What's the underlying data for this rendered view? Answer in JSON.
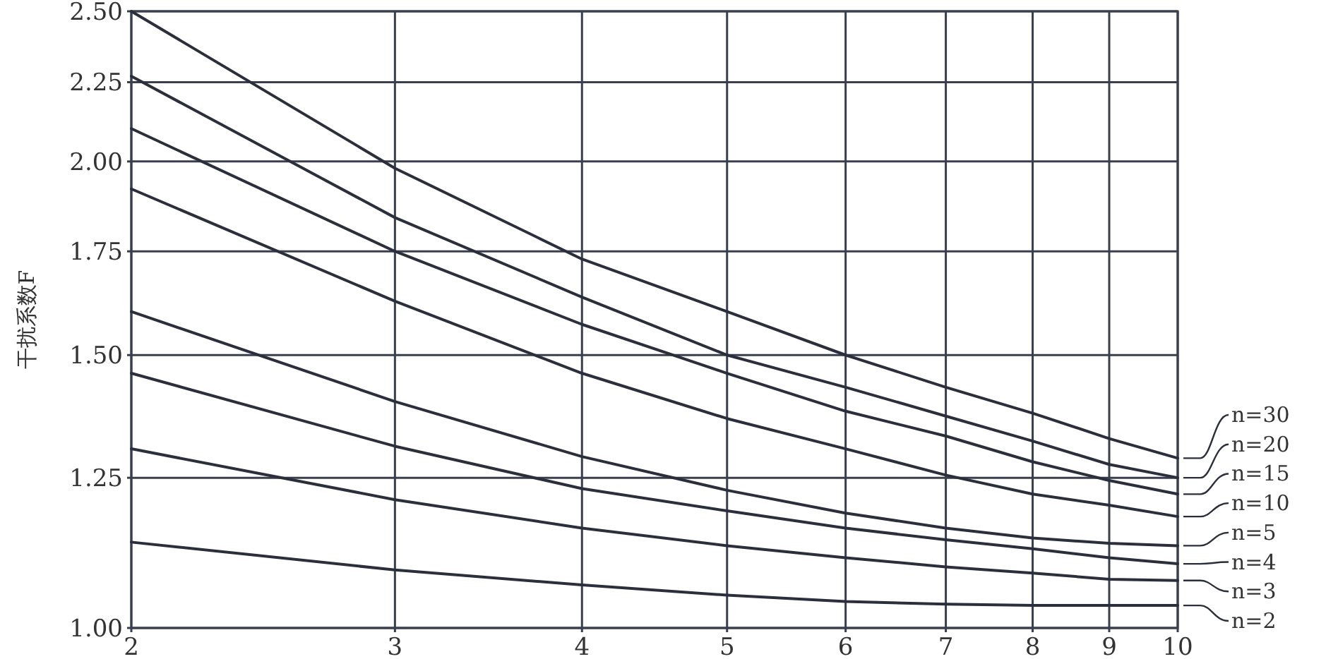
{
  "chart_data": {
    "type": "line",
    "ylabel": "干扰系数F",
    "x": [
      2,
      3,
      4,
      5,
      6,
      7,
      8,
      9,
      10
    ],
    "series": [
      {
        "name": "n=30",
        "color": "#2b2f3b",
        "values": [
          2.5,
          1.98,
          1.73,
          1.6,
          1.5,
          1.43,
          1.376,
          1.325,
          1.287
        ]
      },
      {
        "name": "n=20",
        "color": "#2b2f3b",
        "values": [
          2.27,
          1.84,
          1.635,
          1.5,
          1.43,
          1.37,
          1.32,
          1.275,
          1.25
        ]
      },
      {
        "name": "n=15",
        "color": "#2b2f3b",
        "values": [
          2.1,
          1.75,
          1.57,
          1.46,
          1.38,
          1.33,
          1.28,
          1.245,
          1.22
        ]
      },
      {
        "name": "n=10",
        "color": "#2b2f3b",
        "values": [
          1.92,
          1.625,
          1.46,
          1.365,
          1.305,
          1.255,
          1.22,
          1.2,
          1.18
        ]
      },
      {
        "name": "n=5",
        "color": "#2b2f3b",
        "values": [
          1.6,
          1.4,
          1.29,
          1.227,
          1.186,
          1.16,
          1.143,
          1.134,
          1.13
        ]
      },
      {
        "name": "n=4",
        "color": "#2b2f3b",
        "values": [
          1.46,
          1.31,
          1.23,
          1.19,
          1.16,
          1.14,
          1.125,
          1.11,
          1.1
        ]
      },
      {
        "name": "n=3",
        "color": "#2b2f3b",
        "values": [
          1.305,
          1.21,
          1.16,
          1.13,
          1.11,
          1.095,
          1.085,
          1.075,
          1.073
        ]
      },
      {
        "name": "n=2",
        "color": "#2b2f3b",
        "values": [
          1.136,
          1.09,
          1.066,
          1.05,
          1.04,
          1.036,
          1.034,
          1.034,
          1.034
        ]
      }
    ],
    "xlim": [
      2,
      10
    ],
    "xticks": [
      2,
      3,
      4,
      5,
      6,
      7,
      8,
      9,
      10
    ],
    "ylim": [
      1.0,
      2.5
    ],
    "yticks": [
      {
        "value": 1.0,
        "label": "1.00"
      },
      {
        "value": 1.25,
        "label": "1.25"
      },
      {
        "value": 1.5,
        "label": "1.50"
      },
      {
        "value": 1.75,
        "label": "1.75"
      },
      {
        "value": 2.0,
        "label": "2.00"
      },
      {
        "value": 2.25,
        "label": "2.25"
      },
      {
        "value": 2.5,
        "label": "2.50"
      }
    ],
    "log": "xy",
    "grid": true,
    "legend": "right",
    "marker": "none",
    "line_style": "solid"
  }
}
